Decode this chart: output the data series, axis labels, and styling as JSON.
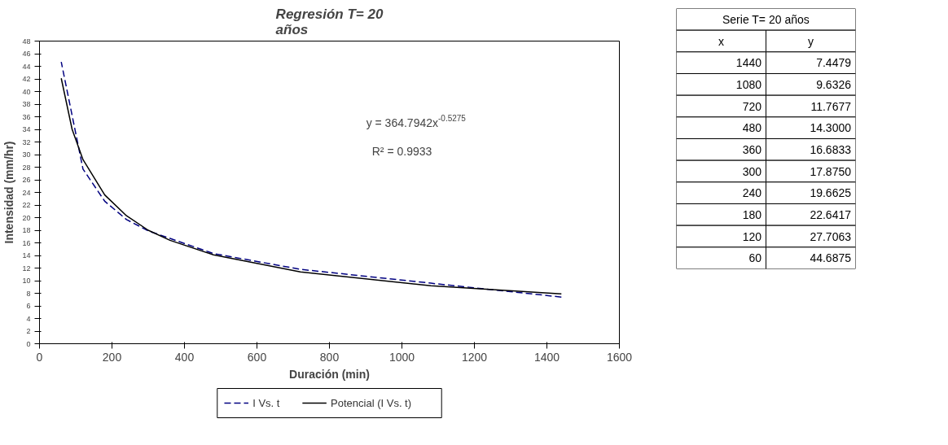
{
  "chart_data": [
    {
      "type": "line",
      "title": "Regresión T= 20\naños",
      "xlabel": "Duración (min)",
      "ylabel": "Intensidad (mm/hr)",
      "xlim": [
        0,
        1600
      ],
      "xticks": [
        0,
        200,
        400,
        600,
        800,
        1000,
        1200,
        1400,
        1600
      ],
      "ylim": [
        0,
        48
      ],
      "yticks": [
        0,
        2,
        4,
        6,
        8,
        10,
        12,
        14,
        16,
        18,
        20,
        22,
        24,
        26,
        28,
        30,
        32,
        34,
        36,
        38,
        40,
        42,
        44,
        46,
        48
      ],
      "grid": false,
      "legend": "bottom",
      "marker": "none",
      "annotations": [
        "y = 364.7942x$^{-0.5275}$",
        "R² = 0.9933"
      ],
      "series": [
        {
          "name": "I Vs. t",
          "color": "#000080",
          "line_style": "dashed",
          "x": [
            1440,
            1080,
            720,
            480,
            360,
            300,
            240,
            180,
            120,
            60
          ],
          "values": [
            7.4,
            9.6,
            11.8,
            14.3,
            16.7,
            17.9,
            19.7,
            22.6,
            27.7,
            44.7
          ]
        },
        {
          "name": "Potencial (I Vs. t)",
          "color": "#000000",
          "line_style": "solid",
          "x": [
            60,
            90,
            120,
            180,
            240,
            300,
            360,
            480,
            720,
            1080,
            1440
          ],
          "values": [
            42.1,
            34.0,
            29.2,
            23.6,
            20.3,
            18.0,
            16.4,
            14.1,
            11.4,
            9.2,
            7.9
          ]
        }
      ]
    },
    {
      "type": "other",
      "title": "Serie T= 20 años",
      "annotations": [
        "x",
        "y",
        "1440",
        "7.4479",
        "1080",
        "9.6326",
        "720",
        "11.7677",
        "480",
        "14.3000",
        "360",
        "16.6833",
        "300",
        "17.8750",
        "240",
        "19.6625",
        "180",
        "22.6417",
        "120",
        "27.7063",
        "60",
        "44.6875"
      ]
    }
  ]
}
